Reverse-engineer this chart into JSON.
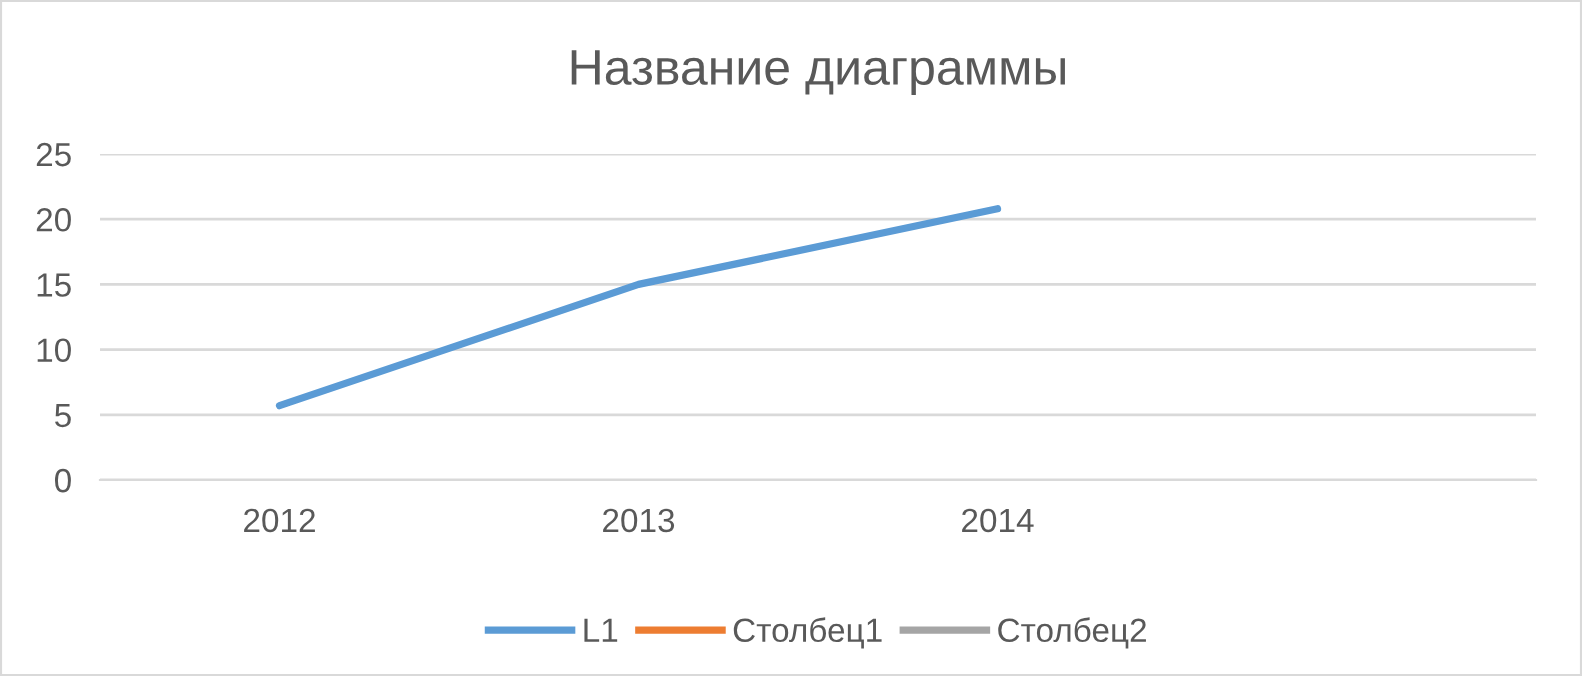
{
  "chart_data": {
    "type": "line",
    "title": "Название диаграммы",
    "categories": [
      "2012",
      "2013",
      "2014",
      null
    ],
    "series": [
      {
        "name": "L1",
        "color": "#5b9bd5",
        "values": [
          5.7,
          15,
          20.8,
          null
        ]
      },
      {
        "name": "Столбец1",
        "color": "#ed7d31",
        "values": [
          null,
          null,
          null,
          null
        ]
      },
      {
        "name": "Столбец2",
        "color": "#a5a5a5",
        "values": [
          null,
          null,
          null,
          null
        ]
      }
    ],
    "ylim": [
      0,
      25
    ],
    "yticks": [
      0,
      5,
      10,
      15,
      20,
      25
    ],
    "grid": "y",
    "legend": "bottom",
    "marker": "none",
    "line_style": "solid"
  }
}
